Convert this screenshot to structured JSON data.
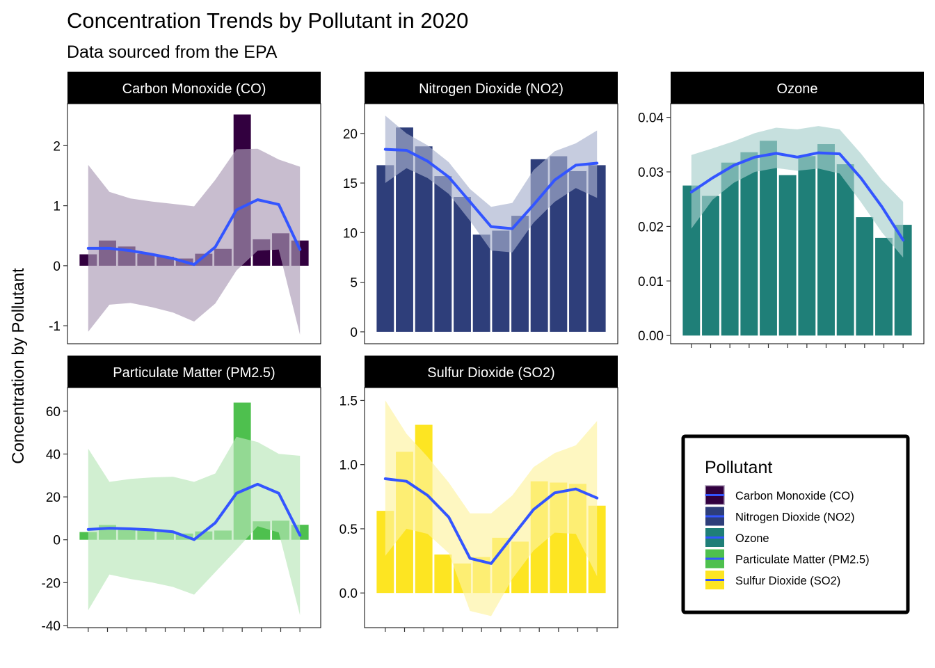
{
  "title": "Concentration Trends by Pollutant in 2020",
  "subtitle": "Data sourced from the EPA",
  "y_axis_label": "Concentration by Pollutant",
  "colors": {
    "smooth_line": "#3355ff",
    "strip_bg": "#000000",
    "strip_text": "#ffffff"
  },
  "legend": {
    "title": "Pollutant",
    "entries": [
      {
        "label": "Carbon Monoxide (CO)",
        "color": "#32003f"
      },
      {
        "label": "Nitrogen Dioxide (NO2)",
        "color": "#2e3e7a"
      },
      {
        "label": "Ozone",
        "color": "#1f7f78"
      },
      {
        "label": "Particulate Matter (PM2.5)",
        "color": "#4ec04e"
      },
      {
        "label": "Sulfur Dioxide (SO2)",
        "color": "#fde522"
      }
    ]
  },
  "chart_data": [
    {
      "type": "bar",
      "facet": "Carbon Monoxide (CO)",
      "color": "#32003f",
      "band_color": "#aa9ab6",
      "ylim": [
        -1.3,
        2.7
      ],
      "yticks": [
        -1,
        0,
        1,
        2
      ],
      "ytick_labels": [
        "-1",
        "0",
        "1",
        "2"
      ],
      "values": [
        0.19,
        0.42,
        0.32,
        0.2,
        0.15,
        0.12,
        0.2,
        0.28,
        2.52,
        0.44,
        0.54,
        0.42
      ],
      "smooth": [
        0.29,
        0.29,
        0.25,
        0.19,
        0.12,
        0.02,
        0.31,
        0.93,
        1.1,
        1.02,
        0.27
      ],
      "band_upper": [
        1.68,
        1.23,
        1.12,
        1.07,
        1.03,
        0.99,
        1.43,
        1.94,
        1.95,
        1.77,
        1.65
      ],
      "band_lower": [
        -1.1,
        -0.65,
        -0.62,
        -0.69,
        -0.78,
        -0.93,
        -0.63,
        -0.08,
        0.25,
        0.27,
        -1.15
      ]
    },
    {
      "type": "bar",
      "facet": "Nitrogen Dioxide (NO2)",
      "color": "#2e3e7a",
      "band_color": "#a8b0ce",
      "ylim": [
        -1.2,
        23
      ],
      "yticks": [
        0,
        5,
        10,
        15,
        20
      ],
      "ytick_labels": [
        "0",
        "5",
        "10",
        "15",
        "20"
      ],
      "values": [
        16.8,
        20.6,
        18.7,
        15.7,
        13.6,
        9.8,
        10.2,
        11.7,
        17.4,
        17.7,
        16.2,
        16.8
      ],
      "smooth": [
        18.4,
        18.3,
        17.2,
        15.6,
        13.1,
        10.6,
        10.4,
        12.8,
        15.3,
        16.8,
        17.0
      ],
      "band_upper": [
        21.8,
        20.0,
        18.8,
        17.1,
        14.4,
        12.6,
        13.0,
        16.3,
        18.2,
        19.0,
        20.3
      ],
      "band_lower": [
        15.0,
        16.5,
        15.5,
        13.9,
        11.2,
        8.2,
        8.0,
        11.0,
        13.1,
        14.5,
        13.5
      ]
    },
    {
      "type": "bar",
      "facet": "Ozone",
      "color": "#1f7f78",
      "band_color": "#a8d0cc",
      "ylim": [
        -0.0015,
        0.0425
      ],
      "yticks": [
        0,
        0.01,
        0.02,
        0.03,
        0.04
      ],
      "ytick_labels": [
        "0.00",
        "0.01",
        "0.02",
        "0.03",
        "0.04"
      ],
      "values": [
        0.0275,
        0.0256,
        0.0317,
        0.0336,
        0.0357,
        0.0294,
        0.0329,
        0.0351,
        0.0314,
        0.0217,
        0.0179,
        0.0203
      ],
      "smooth": [
        0.0263,
        0.0289,
        0.0312,
        0.0327,
        0.0334,
        0.0327,
        0.0335,
        0.0333,
        0.0289,
        0.0236,
        0.0175
      ],
      "band_upper": [
        0.0331,
        0.0343,
        0.0356,
        0.0371,
        0.0381,
        0.0378,
        0.0384,
        0.0378,
        0.0334,
        0.0285,
        0.0245
      ],
      "band_lower": [
        0.0196,
        0.0249,
        0.028,
        0.03,
        0.0307,
        0.0302,
        0.0306,
        0.0297,
        0.0245,
        0.0189,
        0.0143
      ]
    },
    {
      "type": "bar",
      "facet": "Particulate Matter (PM2.5)",
      "color": "#4ec04e",
      "band_color": "#b8e6b8",
      "ylim": [
        -41,
        71
      ],
      "yticks": [
        -40,
        -20,
        0,
        20,
        40,
        60
      ],
      "ytick_labels": [
        "-40",
        "-20",
        "0",
        "20",
        "40",
        "60"
      ],
      "values": [
        3.6,
        6.9,
        5.1,
        4.6,
        4.2,
        2.9,
        3.9,
        4.3,
        64.0,
        8.6,
        8.9,
        7.0
      ],
      "smooth": [
        4.8,
        5.4,
        5.1,
        4.6,
        3.7,
        0.1,
        7.9,
        21.7,
        25.9,
        21.7,
        2.1
      ],
      "band_upper": [
        42.5,
        27.0,
        28.4,
        29.1,
        29.4,
        27.0,
        30.9,
        48.0,
        45.6,
        40.1,
        39.2
      ],
      "band_lower": [
        -32.9,
        -16.2,
        -18.3,
        -19.9,
        -22.0,
        -25.6,
        -15.1,
        -4.6,
        6.3,
        3.4,
        -35.2
      ]
    },
    {
      "type": "bar",
      "facet": "Sulfur Dioxide (SO2)",
      "color": "#fde522",
      "band_color": "#fdf3a0",
      "ylim": [
        -0.27,
        1.6
      ],
      "yticks": [
        0,
        0.5,
        1.0,
        1.5
      ],
      "ytick_labels": [
        "0.0",
        "0.5",
        "1.0",
        "1.5"
      ],
      "values": [
        0.64,
        1.1,
        1.31,
        0.3,
        0.23,
        0.28,
        0.43,
        0.4,
        0.87,
        0.86,
        0.85,
        0.68
      ],
      "smooth": [
        0.89,
        0.87,
        0.76,
        0.59,
        0.27,
        0.23,
        0.44,
        0.65,
        0.78,
        0.81,
        0.74
      ],
      "band_upper": [
        1.5,
        1.24,
        1.06,
        0.86,
        0.62,
        0.62,
        0.76,
        0.98,
        1.09,
        1.15,
        1.34
      ],
      "band_lower": [
        0.29,
        0.5,
        0.46,
        0.31,
        -0.14,
        -0.18,
        0.11,
        0.33,
        0.47,
        0.46,
        0.13
      ]
    }
  ]
}
